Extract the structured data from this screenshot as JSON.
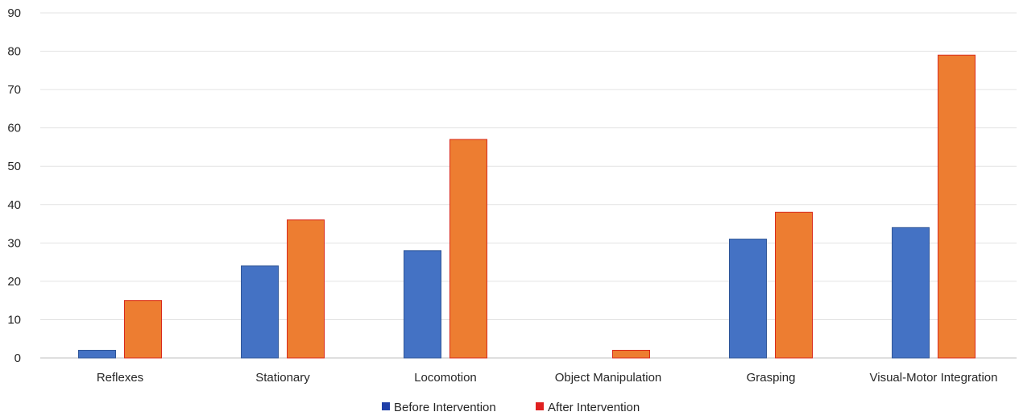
{
  "chart_data": {
    "type": "bar",
    "categories": [
      "Reflexes",
      "Stationary",
      "Locomotion",
      "Object Manipulation",
      "Grasping",
      "Visual-Motor Integration"
    ],
    "series": [
      {
        "name": "Before Intervention",
        "values": [
          2,
          24,
          28,
          0,
          31,
          34
        ],
        "color": "#4472C4"
      },
      {
        "name": "After Intervention",
        "values": [
          15,
          36,
          57,
          2,
          38,
          79
        ],
        "color": "#ED7D31"
      }
    ],
    "yticks": [
      "0",
      "10",
      "20",
      "30",
      "40",
      "50",
      "60",
      "70",
      "80",
      "90"
    ],
    "ylim": [
      0,
      90
    ],
    "grid": true,
    "legend_position": "bottom",
    "legend_marker_colors": [
      "#1F3FA8",
      "#E02020"
    ],
    "bar_edge_color": "#D92A1C"
  }
}
